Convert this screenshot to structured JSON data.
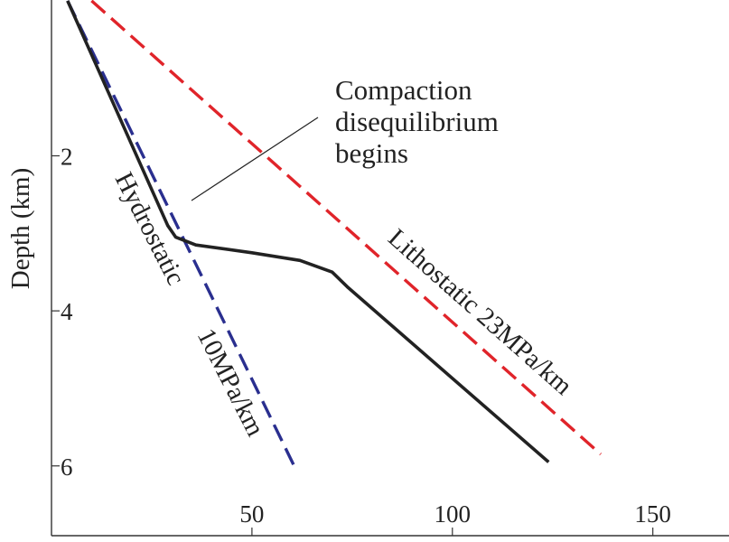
{
  "chart_data": {
    "type": "line",
    "ylabel": "Depth (km)",
    "xlim": [
      0,
      169
    ],
    "ylim": [
      -0.01,
      6.9
    ],
    "x_ticks": [
      {
        "value": 50,
        "label": "50"
      },
      {
        "value": 100,
        "label": "100"
      },
      {
        "value": 150,
        "label": "150"
      }
    ],
    "y_ticks": [
      {
        "value": 2,
        "label": "2"
      },
      {
        "value": 4,
        "label": "4"
      },
      {
        "value": 6,
        "label": "6"
      }
    ],
    "series": [
      {
        "key": "hydrostatic",
        "color": "#2a2f8f",
        "style": "dashed",
        "points": [
          [
            4,
            0
          ],
          [
            61,
            6.05
          ]
        ]
      },
      {
        "key": "lithostatic",
        "color": "#e0242a",
        "style": "dashed",
        "points": [
          [
            10,
            0
          ],
          [
            137,
            5.85
          ]
        ]
      },
      {
        "key": "pore-pressure",
        "color": "#222222",
        "style": "solid",
        "points": [
          [
            4,
            0
          ],
          [
            29,
            2.9
          ],
          [
            31,
            3.05
          ],
          [
            36,
            3.15
          ],
          [
            50,
            3.25
          ],
          [
            62,
            3.35
          ],
          [
            70,
            3.5
          ],
          [
            74,
            3.7
          ],
          [
            124,
            5.95
          ]
        ]
      }
    ],
    "labels": {
      "hydrostatic_line1": "Hydrostatic",
      "hydrostatic_line2": "10MPa/km",
      "lithostatic": "Lithostatic  23MPa/km",
      "compaction_line1": "Compaction",
      "compaction_line2": "disequilibrium",
      "compaction_line3": "begins"
    },
    "grid": false
  }
}
